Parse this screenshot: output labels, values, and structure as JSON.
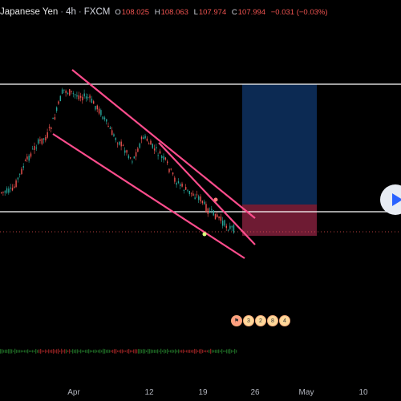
{
  "header": {
    "symbol": "Japanese Yen",
    "interval": "4h",
    "exchange": "FXCM",
    "open": "108.025",
    "high": "108.063",
    "low": "107.974",
    "close": "107.994",
    "change": "−0.031 (−0.03%)"
  },
  "xaxis": {
    "labels": [
      "Apr",
      "12",
      "19",
      "26",
      "May",
      "10"
    ]
  },
  "colors": {
    "background": "#000000",
    "bull": "#26a69a",
    "bear": "#ef5350",
    "channel": "#ff4d8d",
    "hline": "#ffffff",
    "target_zone": "#0d2f5c",
    "stop_zone": "#7a1e38"
  },
  "events": {
    "items": [
      "3",
      "2",
      "8",
      "4"
    ]
  },
  "icons": {
    "play": "play-icon",
    "flag": "flag-icon"
  }
}
